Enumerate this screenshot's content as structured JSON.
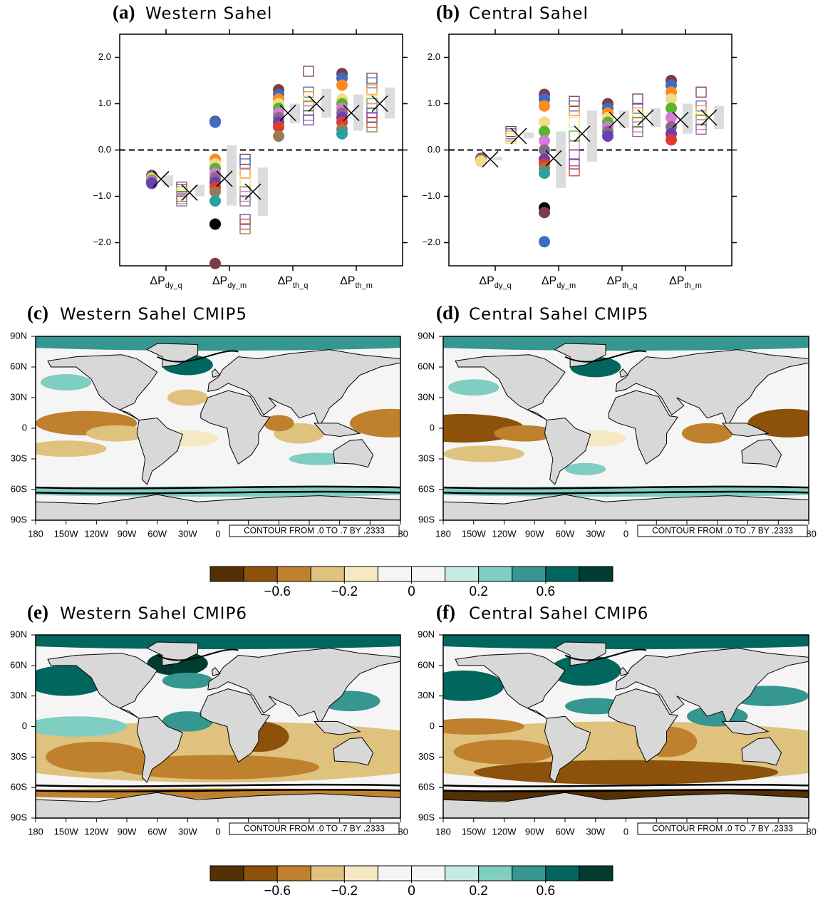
{
  "chart_data": [
    {
      "type": "model-spread",
      "panel_label": "(a)",
      "title": "Western Sahel",
      "category_prefix": "ΔP",
      "categories": [
        "dy_q",
        "dy_m",
        "th_q",
        "th_m"
      ],
      "ylim": [
        -2.5,
        2.5
      ],
      "yticks": [
        {
          "value": -2,
          "label": "−2.0"
        },
        {
          "value": -1,
          "label": "−1.0"
        },
        {
          "value": 0,
          "label": "0.0"
        },
        {
          "value": 1,
          "label": "1.0"
        },
        {
          "value": 2,
          "label": "2.0"
        }
      ],
      "reference_line": 0,
      "range_color": "#dcdcdc",
      "model_colors": [
        "#7d3c4a",
        "#3d6cc0",
        "#ff8a1e",
        "#f0dc8c",
        "#58b52c",
        "#d77bd6",
        "#8a6a8a",
        "#6a3fb0",
        "#e03a2a",
        "#9a7a50",
        "#2aa0a0",
        "#000000"
      ],
      "groups": [
        {
          "marker": "circle",
          "values": [
            [
              -0.55,
              -0.58,
              -0.6,
              -0.62,
              -0.65,
              -0.68,
              -0.7,
              -0.72
            ],
            [
              0.62,
              0.6,
              -0.2,
              -0.3,
              -0.4,
              -0.5,
              -0.6,
              -0.7,
              -0.8,
              -0.9,
              -1.1,
              -1.6,
              -2.45
            ],
            [
              1.3,
              1.2,
              1.1,
              1.0,
              0.9,
              0.8,
              0.7,
              0.6,
              0.5,
              0.3
            ],
            [
              1.65,
              1.55,
              1.4,
              1.1,
              1.0,
              0.9,
              0.8,
              0.7,
              0.6,
              0.45,
              0.35
            ]
          ],
          "mean": [
            -0.63,
            -0.62,
            0.8,
            0.8
          ],
          "range_high": [
            -0.55,
            0.1,
            1.0,
            1.2
          ],
          "range_low": [
            -0.78,
            -1.2,
            0.58,
            0.42
          ]
        },
        {
          "marker": "square",
          "values": [
            [
              -0.8,
              -0.85,
              -0.9,
              -0.95,
              -1.0,
              -1.05,
              -1.1
            ],
            [
              -0.2,
              -0.3,
              -0.5,
              -0.7,
              -0.9,
              -1.0,
              -1.1,
              -1.5,
              -1.6,
              -1.7
            ],
            [
              1.7,
              1.25,
              1.15,
              1.05,
              0.95,
              0.85,
              0.75,
              0.65
            ],
            [
              1.55,
              1.45,
              1.3,
              1.1,
              1.0,
              0.9,
              0.8,
              0.7,
              0.6,
              0.5
            ]
          ],
          "mean": [
            -0.92,
            -0.9,
            1.0,
            1.0
          ],
          "range_high": [
            -0.75,
            -0.38,
            1.32,
            1.35
          ],
          "range_low": [
            -1.0,
            -1.42,
            0.7,
            0.68
          ]
        }
      ]
    },
    {
      "type": "model-spread",
      "panel_label": "(b)",
      "title": "Central Sahel",
      "category_prefix": "ΔP",
      "categories": [
        "dy_q",
        "dy_m",
        "th_q",
        "th_m"
      ],
      "ylim": [
        -2.5,
        2.5
      ],
      "yticks": [
        {
          "value": -2,
          "label": "−2.0"
        },
        {
          "value": -1,
          "label": "−1.0"
        },
        {
          "value": 0,
          "label": "0.0"
        },
        {
          "value": 1,
          "label": "1.0"
        },
        {
          "value": 2,
          "label": "2.0"
        }
      ],
      "reference_line": 0,
      "range_color": "#dcdcdc",
      "model_colors": [
        "#7d3c4a",
        "#3d6cc0",
        "#ff8a1e",
        "#f0dc8c",
        "#58b52c",
        "#d77bd6",
        "#8a6a8a",
        "#6a3fb0",
        "#e03a2a",
        "#9a7a50",
        "#2aa0a0",
        "#000000"
      ],
      "groups": [
        {
          "marker": "circle",
          "values": [
            [
              -0.18,
              -0.2,
              -0.22,
              -0.25
            ],
            [
              1.2,
              1.1,
              0.95,
              0.6,
              0.4,
              0.2,
              0,
              -0.2,
              -0.3,
              -0.4,
              -0.5,
              -1.25,
              -1.35,
              -1.98
            ],
            [
              1.0,
              0.9,
              0.8,
              0.7,
              0.6,
              0.5,
              0.4,
              0.3
            ],
            [
              1.5,
              1.4,
              1.25,
              1.1,
              0.9,
              0.7,
              0.5,
              0.35,
              0.22
            ]
          ],
          "mean": [
            -0.2,
            -0.18,
            0.65,
            0.65
          ],
          "range_high": [
            -0.15,
            0.4,
            0.85,
            1.0
          ],
          "range_low": [
            -0.22,
            -0.82,
            0.48,
            0.35
          ]
        },
        {
          "marker": "square",
          "values": [
            [
              0.4,
              0.35,
              0.3,
              0.25
            ],
            [
              1.05,
              0.95,
              0.85,
              0.6,
              0.3,
              0.1,
              -0.1,
              -0.3,
              -0.45
            ],
            [
              1.1,
              0.9,
              0.8,
              0.7,
              0.6,
              0.5,
              0.4
            ],
            [
              1.25,
              0.95,
              0.85,
              0.75,
              0.65,
              0.55,
              0.45
            ]
          ],
          "mean": [
            0.3,
            0.35,
            0.7,
            0.7
          ],
          "range_high": [
            0.38,
            0.85,
            0.9,
            0.95
          ],
          "range_low": [
            0.25,
            -0.25,
            0.5,
            0.45
          ]
        }
      ]
    },
    {
      "type": "map",
      "panel_label": "(c)",
      "title": "Western Sahel CMIP5",
      "xlim": [
        -180,
        180
      ],
      "ylim": [
        -90,
        90
      ],
      "xticks": [
        {
          "value": -180,
          "label": "180"
        },
        {
          "value": -150,
          "label": "150W"
        },
        {
          "value": -120,
          "label": "120W"
        },
        {
          "value": -90,
          "label": "90W"
        },
        {
          "value": -60,
          "label": "60W"
        },
        {
          "value": -30,
          "label": "30W"
        },
        0,
        {
          "value": 30,
          "label": "30E"
        },
        {
          "value": 60,
          "label": "60E"
        },
        {
          "value": 90,
          "label": "90E"
        },
        {
          "value": 120,
          "label": "120E"
        },
        {
          "value": 150,
          "label": "150E"
        },
        {
          "value": 180,
          "label": "180"
        }
      ],
      "yticks": [
        {
          "value": 90,
          "label": "90N"
        },
        {
          "value": 60,
          "label": "60N"
        },
        {
          "value": 30,
          "label": "30N"
        },
        0,
        {
          "value": -30,
          "label": "30S"
        },
        {
          "value": -60,
          "label": "60S"
        },
        {
          "value": -90,
          "label": "90S"
        }
      ],
      "note": "CONTOUR FROM .0 TO .7 BY .2333"
    },
    {
      "type": "map",
      "panel_label": "(d)",
      "title": "Central Sahel CMIP5",
      "xlim": [
        -180,
        180
      ],
      "ylim": [
        -90,
        90
      ],
      "xticks": [
        {
          "value": -180,
          "label": "180"
        },
        {
          "value": -150,
          "label": "150W"
        },
        {
          "value": -120,
          "label": "120W"
        },
        {
          "value": -90,
          "label": "90W"
        },
        {
          "value": -60,
          "label": "60W"
        },
        {
          "value": -30,
          "label": "30W"
        },
        0,
        {
          "value": 30,
          "label": "30E"
        },
        {
          "value": 60,
          "label": "60E"
        },
        {
          "value": 90,
          "label": "90E"
        },
        {
          "value": 120,
          "label": "120E"
        },
        {
          "value": 150,
          "label": "150E"
        },
        {
          "value": 180,
          "label": "180"
        }
      ],
      "yticks": [
        {
          "value": 90,
          "label": "90N"
        },
        {
          "value": 60,
          "label": "60N"
        },
        {
          "value": 30,
          "label": "30N"
        },
        0,
        {
          "value": -30,
          "label": "30S"
        },
        {
          "value": -60,
          "label": "60S"
        },
        {
          "value": -90,
          "label": "90S"
        }
      ],
      "note": "CONTOUR FROM .0 TO .7 BY .2333"
    },
    {
      "type": "colorbar",
      "colors": [
        "#543005",
        "#8c510a",
        "#bf812d",
        "#dfc27d",
        "#f6e8c3",
        "#f5f5f5",
        "#f6f6f6",
        "#c7eae5",
        "#80cdc1",
        "#35978f",
        "#01665e",
        "#003c30"
      ],
      "levels": [
        -0.8,
        -0.6,
        -0.4,
        -0.2,
        -0.1,
        0,
        0.1,
        0.2,
        0.4,
        0.6,
        0.8
      ],
      "labels": [
        {
          "value": -0.6,
          "label": "−0.6"
        },
        {
          "value": -0.2,
          "label": "−0.2"
        },
        0,
        0.2,
        0.6
      ]
    },
    {
      "type": "map",
      "panel_label": "(e)",
      "title": "Western Sahel CMIP6",
      "xlim": [
        -180,
        180
      ],
      "ylim": [
        -90,
        90
      ],
      "xticks": [
        {
          "value": -180,
          "label": "180"
        },
        {
          "value": -150,
          "label": "150W"
        },
        {
          "value": -120,
          "label": "120W"
        },
        {
          "value": -90,
          "label": "90W"
        },
        {
          "value": -60,
          "label": "60W"
        },
        {
          "value": -30,
          "label": "30W"
        },
        0,
        {
          "value": 30,
          "label": "30E"
        },
        {
          "value": 60,
          "label": "60E"
        },
        {
          "value": 90,
          "label": "90E"
        },
        {
          "value": 120,
          "label": "120E"
        },
        {
          "value": 150,
          "label": "150E"
        },
        {
          "value": 180,
          "label": "180"
        }
      ],
      "yticks": [
        {
          "value": 90,
          "label": "90N"
        },
        {
          "value": 60,
          "label": "60N"
        },
        {
          "value": 30,
          "label": "30N"
        },
        0,
        {
          "value": -30,
          "label": "30S"
        },
        {
          "value": -60,
          "label": "60S"
        },
        {
          "value": -90,
          "label": "90S"
        }
      ],
      "note": "CONTOUR FROM .0 TO .7 BY .2333"
    },
    {
      "type": "map",
      "panel_label": "(f)",
      "title": "Central Sahel CMIP6",
      "xlim": [
        -180,
        180
      ],
      "ylim": [
        -90,
        90
      ],
      "xticks": [
        {
          "value": -180,
          "label": "180"
        },
        {
          "value": -150,
          "label": "150W"
        },
        {
          "value": -120,
          "label": "120W"
        },
        {
          "value": -90,
          "label": "90W"
        },
        {
          "value": -60,
          "label": "60W"
        },
        {
          "value": -30,
          "label": "30W"
        },
        0,
        {
          "value": 30,
          "label": "30E"
        },
        {
          "value": 60,
          "label": "60E"
        },
        {
          "value": 90,
          "label": "90E"
        },
        {
          "value": 120,
          "label": "120E"
        },
        {
          "value": 150,
          "label": "150E"
        },
        {
          "value": 180,
          "label": "180"
        }
      ],
      "yticks": [
        {
          "value": 90,
          "label": "90N"
        },
        {
          "value": 60,
          "label": "60N"
        },
        {
          "value": 30,
          "label": "30N"
        },
        0,
        {
          "value": -30,
          "label": "30S"
        },
        {
          "value": -60,
          "label": "60S"
        },
        {
          "value": -90,
          "label": "90S"
        }
      ],
      "note": "CONTOUR FROM .0 TO .7 BY .2333"
    },
    {
      "type": "colorbar",
      "colors": [
        "#543005",
        "#8c510a",
        "#bf812d",
        "#dfc27d",
        "#f6e8c3",
        "#f5f5f5",
        "#f6f6f6",
        "#c7eae5",
        "#80cdc1",
        "#35978f",
        "#01665e",
        "#003c30"
      ],
      "levels": [
        -0.8,
        -0.6,
        -0.4,
        -0.2,
        -0.1,
        0,
        0.1,
        0.2,
        0.4,
        0.6,
        0.8
      ],
      "labels": [
        {
          "value": -0.6,
          "label": "−0.6"
        },
        {
          "value": -0.2,
          "label": "−0.2"
        },
        0,
        0.2,
        0.6
      ]
    }
  ]
}
